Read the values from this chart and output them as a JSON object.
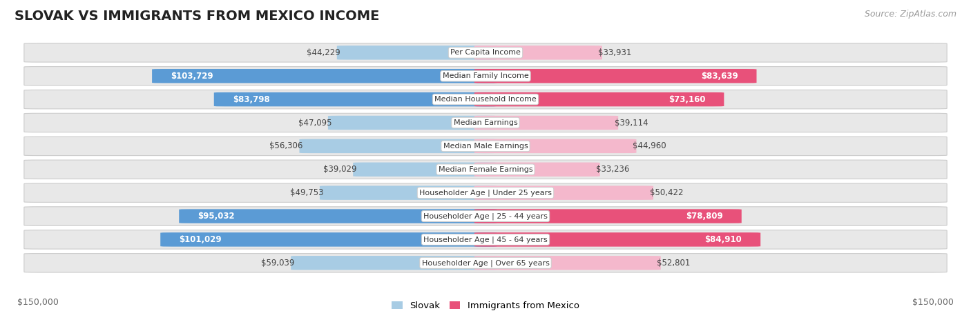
{
  "title": "SLOVAK VS IMMIGRANTS FROM MEXICO INCOME",
  "source": "Source: ZipAtlas.com",
  "categories": [
    "Per Capita Income",
    "Median Family Income",
    "Median Household Income",
    "Median Earnings",
    "Median Male Earnings",
    "Median Female Earnings",
    "Householder Age | Under 25 years",
    "Householder Age | 25 - 44 years",
    "Householder Age | 45 - 64 years",
    "Householder Age | Over 65 years"
  ],
  "slovak_values": [
    44229,
    103729,
    83798,
    47095,
    56306,
    39029,
    49753,
    95032,
    101029,
    59039
  ],
  "mexico_values": [
    33931,
    83639,
    73160,
    39114,
    44960,
    33236,
    50422,
    78809,
    84910,
    52801
  ],
  "slovak_labels": [
    "$44,229",
    "$103,729",
    "$83,798",
    "$47,095",
    "$56,306",
    "$39,029",
    "$49,753",
    "$95,032",
    "$101,029",
    "$59,039"
  ],
  "mexico_labels": [
    "$33,931",
    "$83,639",
    "$73,160",
    "$39,114",
    "$44,960",
    "$33,236",
    "$50,422",
    "$78,809",
    "$84,910",
    "$52,801"
  ],
  "max_value": 150000,
  "slovak_color_light": "#a8cce4",
  "slovak_color_dark": "#5b9bd5",
  "mexico_color_light": "#f4b8cc",
  "mexico_color_dark": "#e8517a",
  "background_color": "#ffffff",
  "row_bg_color": "#e8e8e8",
  "slovak_dark_threshold": 70000,
  "mexico_dark_threshold": 70000,
  "legend_slovak": "Slovak",
  "legend_mexico": "Immigrants from Mexico",
  "x_label_left": "$150,000",
  "x_label_right": "$150,000",
  "title_fontsize": 14,
  "source_fontsize": 9,
  "label_fontsize": 8.5,
  "cat_fontsize": 8.0
}
